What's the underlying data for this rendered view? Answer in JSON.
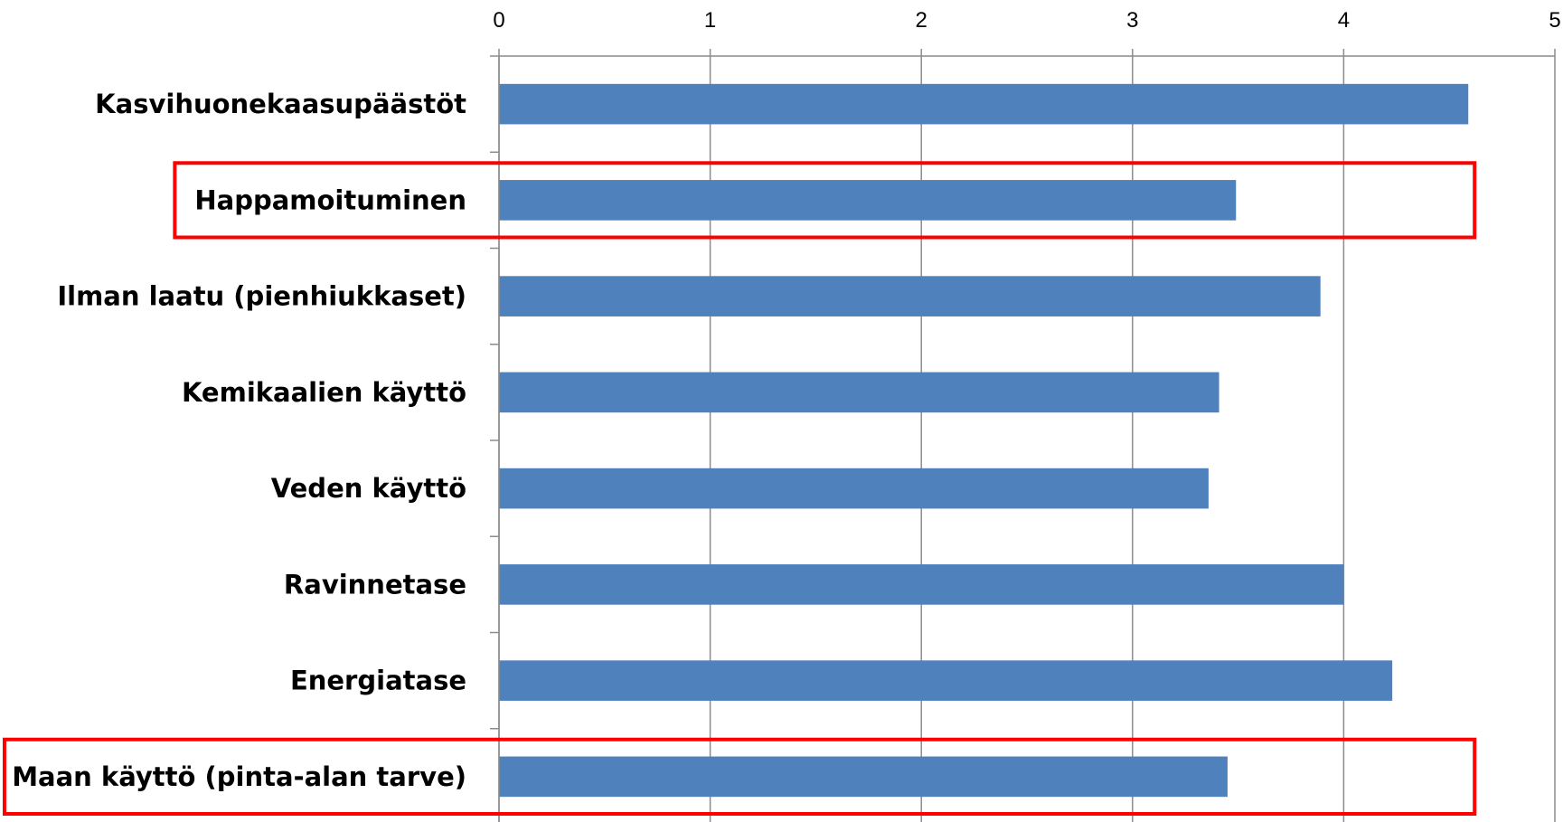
{
  "chart_data": {
    "type": "bar",
    "orientation": "horizontal",
    "categories": [
      "Kasvihuonekaasupäästöt",
      "Happamoituminen",
      "Ilman laatu (pienhiukkaset)",
      "Kemikaalien käyttö",
      "Veden käyttö",
      "Ravinnetase",
      "Energiatase",
      "Maan käyttö (pinta-alan tarve)"
    ],
    "values": [
      4.59,
      3.49,
      3.89,
      3.41,
      3.36,
      4.0,
      4.23,
      3.45
    ],
    "xlim": [
      0,
      5
    ],
    "x_ticks": [
      "0",
      "1",
      "2",
      "3",
      "4",
      "5"
    ],
    "x_axis_position": "top",
    "grid": "vertical",
    "title": "",
    "xlabel": "",
    "ylabel": "",
    "highlighted_categories": [
      "Happamoituminen",
      "Maan käyttö (pinta-alan tarve)"
    ],
    "colors": {
      "bar": "#4f81bd",
      "grid": "#8c8c8c",
      "highlight": "#ff0000"
    }
  }
}
